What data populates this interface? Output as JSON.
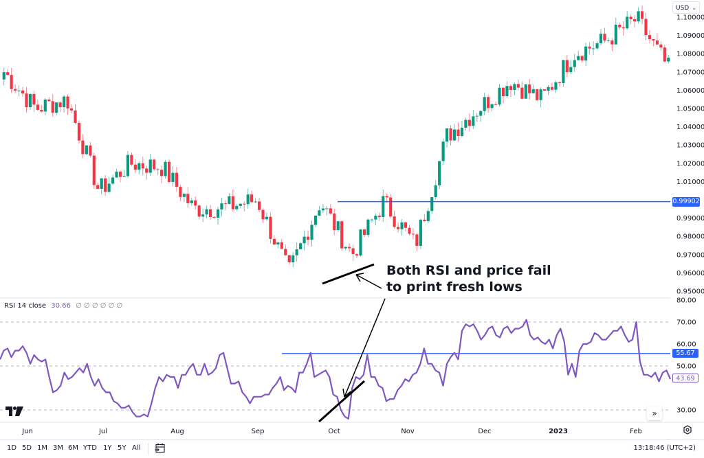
{
  "header": {
    "currency": "USD",
    "currency_icon": "chevron-down-icon"
  },
  "price_axis": {
    "ticks": [
      "1.10000",
      "1.09000",
      "1.08000",
      "1.07000",
      "1.06000",
      "1.05000",
      "1.04000",
      "1.03000",
      "1.02000",
      "1.01000",
      "0.99000",
      "0.98000",
      "0.97000",
      "0.96000",
      "0.95000"
    ],
    "horizontal_line_label": "0.99902"
  },
  "rsi": {
    "legend_name": "RSI 14 close",
    "legend_value": "30.66",
    "legend_na": "∅ ∅ ∅ ∅ ∅ ∅",
    "axis_ticks": [
      "80.00",
      "70.00",
      "60.00",
      "50.00",
      "30.00"
    ],
    "horizontal_line_label": "55.67",
    "current_value_label": "43.69"
  },
  "time_axis": {
    "labels": [
      "Jun",
      "Jul",
      "Aug",
      "Sep",
      "Oct",
      "Nov",
      "Dec",
      "2023",
      "Feb"
    ]
  },
  "annotation": {
    "line1": "Both RSI and price fail",
    "line2": "to print fresh lows"
  },
  "bottom_bar": {
    "ranges": [
      "1D",
      "5D",
      "1M",
      "3M",
      "6M",
      "YTD",
      "1Y",
      "5Y",
      "All"
    ],
    "date_range_icon": "calendar-goto-icon",
    "clock": "13:18:46 (UTC+2)"
  },
  "colors": {
    "up": "#089981",
    "down": "#f23645",
    "rsi_line": "#7e57c2",
    "hline": "#2962ff",
    "grid_dashed": "#b2b5be"
  },
  "chart_data": [
    {
      "type": "candlestick",
      "title": "EUR/USD daily",
      "ylabel": "USD",
      "ylim": [
        0.95,
        1.1
      ],
      "x_labels": [
        "Jun",
        "Jul",
        "Aug",
        "Sep",
        "Oct",
        "Nov",
        "Dec",
        "2023",
        "Feb"
      ],
      "horizontal_lines": [
        0.99902
      ],
      "approx_close_path": [
        {
          "label": "early Jun",
          "close": 1.07
        },
        {
          "label": "mid Jun",
          "close": 1.05
        },
        {
          "label": "late Jun",
          "close": 1.055
        },
        {
          "label": "mid Jul",
          "close": 1.005
        },
        {
          "label": "late Jul",
          "close": 1.02
        },
        {
          "label": "early Aug",
          "close": 1.018
        },
        {
          "label": "late Aug",
          "close": 0.995
        },
        {
          "label": "early Sep",
          "close": 0.996
        },
        {
          "label": "mid Sep",
          "close": 1.0
        },
        {
          "label": "late Sep low",
          "close": 0.96
        },
        {
          "label": "early Oct high",
          "close": 0.999
        },
        {
          "label": "mid Oct low",
          "close": 0.97
        },
        {
          "label": "late Oct",
          "close": 0.999
        },
        {
          "label": "early Nov",
          "close": 0.975
        },
        {
          "label": "mid Nov",
          "close": 1.035
        },
        {
          "label": "early Dec",
          "close": 1.05
        },
        {
          "label": "mid Dec",
          "close": 1.065
        },
        {
          "label": "early Jan",
          "close": 1.055
        },
        {
          "label": "mid Jan",
          "close": 1.08
        },
        {
          "label": "late Jan",
          "close": 1.087
        },
        {
          "label": "early Feb high",
          "close": 1.099
        },
        {
          "label": "mid Feb",
          "close": 1.072
        }
      ]
    },
    {
      "type": "line",
      "title": "RSI 14 close",
      "ylim": [
        25,
        80
      ],
      "horizontal_lines": [
        70,
        55.67,
        50,
        30
      ],
      "last_value": 43.69,
      "legend_value": 30.66,
      "series": [
        {
          "name": "RSI",
          "values": [
            53,
            57,
            58,
            54,
            57,
            57,
            59,
            56,
            51,
            55,
            53,
            52,
            53,
            45,
            38,
            39,
            41,
            47,
            44,
            45,
            47,
            49,
            47,
            51,
            45,
            41,
            44,
            40,
            38,
            38,
            34,
            33,
            31,
            31,
            32,
            29,
            27,
            27,
            28,
            27,
            33,
            40,
            45,
            43,
            46,
            45,
            45,
            40,
            46,
            46,
            49,
            51,
            46,
            46,
            51,
            46,
            47,
            49,
            55,
            56,
            49,
            42,
            42,
            43,
            38,
            36,
            33,
            36,
            36,
            36,
            37,
            37,
            40,
            42,
            45,
            39,
            41,
            40,
            38,
            47,
            47,
            51,
            56,
            45,
            46,
            47,
            48,
            45,
            37,
            36,
            30,
            27,
            26,
            40,
            45,
            44,
            46,
            55,
            45,
            45,
            41,
            40,
            34,
            35,
            35,
            39,
            41,
            44,
            43,
            46,
            47,
            51,
            58,
            51,
            51,
            48,
            47,
            41,
            51,
            54,
            56,
            53,
            66,
            69,
            68,
            69,
            66,
            62,
            64,
            67,
            68,
            64,
            63,
            67,
            68,
            65,
            67,
            67,
            68,
            71,
            64,
            62,
            63,
            61,
            60,
            62,
            58,
            64,
            67,
            61,
            46,
            51,
            45,
            57,
            60,
            60,
            61,
            65,
            64,
            62,
            62,
            64,
            66,
            66,
            68,
            64,
            61,
            62,
            70,
            52,
            46,
            46,
            45,
            47,
            43,
            47,
            48,
            44
          ]
        }
      ]
    }
  ]
}
